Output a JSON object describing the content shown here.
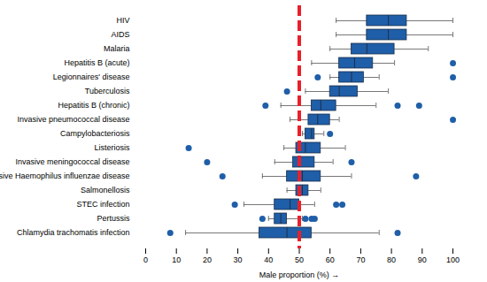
{
  "chart_data": {
    "type": "boxplot",
    "orientation": "horizontal",
    "xlabel": "Male proportion (%)",
    "xlim": [
      0,
      100
    ],
    "xticks": [
      0,
      10,
      20,
      30,
      40,
      50,
      60,
      70,
      80,
      90,
      100
    ],
    "color": "#1f5ea8",
    "reference_line": {
      "value": 50,
      "color": "#e8202a",
      "line_style": "dashed"
    },
    "categories": [
      "HIV",
      "AIDS",
      "Malaria",
      "Hepatitis B (acute)",
      "Legionnaires' disease",
      "Tuberculosis",
      "Hepatitis B (chronic)",
      "Invasive pneumococcal disease",
      "Campylobacteriosis",
      "Listeriosis",
      "Invasive meningococcal disease",
      "Invasive Haemophilus influenzae disease",
      "Salmonellosis",
      "STEC infection",
      "Pertussis",
      "Chlamydia trachomatis infection"
    ],
    "boxes": [
      {
        "whisker_low": 62,
        "q1": 72,
        "median": 79,
        "q3": 85,
        "whisker_high": 100,
        "outliers": []
      },
      {
        "whisker_low": 62,
        "q1": 72,
        "median": 79,
        "q3": 85,
        "whisker_high": 100,
        "outliers": []
      },
      {
        "whisker_low": 60,
        "q1": 67,
        "median": 72,
        "q3": 81,
        "whisker_high": 92,
        "outliers": []
      },
      {
        "whisker_low": 54,
        "q1": 63,
        "median": 68,
        "q3": 74,
        "whisker_high": 81,
        "outliers": [
          100
        ]
      },
      {
        "whisker_low": 60,
        "q1": 63,
        "median": 67,
        "q3": 71,
        "whisker_high": 76,
        "outliers": [
          56,
          100
        ]
      },
      {
        "whisker_low": 52,
        "q1": 60,
        "median": 63,
        "q3": 69,
        "whisker_high": 79,
        "outliers": [
          46
        ]
      },
      {
        "whisker_low": 44,
        "q1": 54,
        "median": 57,
        "q3": 62,
        "whisker_high": 75,
        "outliers": [
          39,
          82,
          89
        ]
      },
      {
        "whisker_low": 47,
        "q1": 53,
        "median": 56,
        "q3": 60,
        "whisker_high": 63,
        "outliers": [
          100
        ]
      },
      {
        "whisker_low": 51,
        "q1": 52,
        "median": 54,
        "q3": 55,
        "whisker_high": 58,
        "outliers": [
          60
        ]
      },
      {
        "whisker_low": 45,
        "q1": 49,
        "median": 52,
        "q3": 57,
        "whisker_high": 65,
        "outliers": [
          14
        ]
      },
      {
        "whisker_low": 42,
        "q1": 48,
        "median": 50,
        "q3": 55,
        "whisker_high": 61,
        "outliers": [
          20,
          67
        ]
      },
      {
        "whisker_low": 38,
        "q1": 46,
        "median": 51,
        "q3": 57,
        "whisker_high": 67,
        "outliers": [
          25,
          88
        ]
      },
      {
        "whisker_low": 46,
        "q1": 49,
        "median": 51,
        "q3": 53,
        "whisker_high": 57,
        "outliers": []
      },
      {
        "whisker_low": 32,
        "q1": 42,
        "median": 47,
        "q3": 50,
        "whisker_high": 55,
        "outliers": [
          29,
          62,
          64
        ]
      },
      {
        "whisker_low": 40,
        "q1": 42,
        "median": 44,
        "q3": 46,
        "whisker_high": 51,
        "outliers": [
          38,
          52,
          54,
          55
        ]
      },
      {
        "whisker_low": 13,
        "q1": 37,
        "median": 46,
        "q3": 54,
        "whisker_high": 76,
        "outliers": [
          8,
          82
        ]
      }
    ]
  }
}
